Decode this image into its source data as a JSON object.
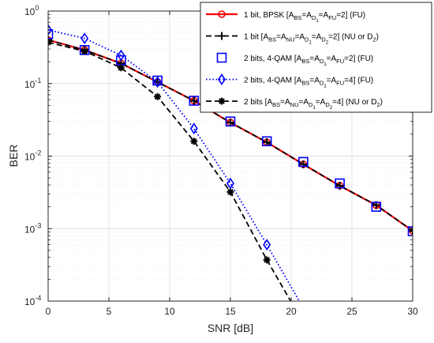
{
  "chart_data": {
    "type": "line",
    "xlabel": "SNR [dB]",
    "ylabel": "BER",
    "xlim": [
      0,
      30
    ],
    "ylim": [
      0.0001,
      1
    ],
    "yscale": "log",
    "grid": true,
    "legend_position": "top-right",
    "x_ticks": [
      0,
      5,
      10,
      15,
      20,
      25,
      30
    ],
    "x_tick_labels": [
      "0",
      "5",
      "10",
      "15",
      "20",
      "25",
      "30"
    ],
    "y_ticks": [
      1,
      0.1,
      0.01,
      0.001,
      0.0001
    ],
    "y_tick_labels": [
      {
        "base": "10",
        "exp": "0"
      },
      {
        "base": "10",
        "exp": "-1"
      },
      {
        "base": "10",
        "exp": "-2"
      },
      {
        "base": "10",
        "exp": "-3"
      },
      {
        "base": "10",
        "exp": "-4"
      }
    ],
    "series": [
      {
        "legend": [
          {
            "t": "1 bit, BPSK [A"
          },
          {
            "t": "BS",
            "sub": true
          },
          {
            "t": "=A"
          },
          {
            "t": "D",
            "sub": true
          },
          {
            "t": "1",
            "subsub": true
          },
          {
            "t": "=A"
          },
          {
            "t": "FU",
            "sub": true
          },
          {
            "t": "=2]  (FU)"
          }
        ],
        "color": "#ff0000",
        "line": "solid",
        "width": 2.2,
        "marker": "circle",
        "x": [
          0,
          3,
          6,
          9,
          12,
          15,
          18,
          21,
          24,
          27,
          30
        ],
        "y": [
          0.4,
          0.29,
          0.19,
          0.105,
          0.058,
          0.029,
          0.0155,
          0.0077,
          0.0039,
          0.0021,
          0.00093
        ]
      },
      {
        "legend": [
          {
            "t": "1 bit [A"
          },
          {
            "t": "BS",
            "sub": true
          },
          {
            "t": "=A"
          },
          {
            "t": "NU",
            "sub": true
          },
          {
            "t": "=A"
          },
          {
            "t": "D",
            "sub": true
          },
          {
            "t": "1",
            "subsub": true
          },
          {
            "t": "=A"
          },
          {
            "t": "D",
            "sub": true
          },
          {
            "t": "2",
            "subsub": true
          },
          {
            "t": "=2]  (NU or D"
          },
          {
            "t": "2",
            "sub": true
          },
          {
            "t": ")"
          }
        ],
        "color": "#000000",
        "line": "dash",
        "width": 1.8,
        "marker": "plus",
        "x": [
          0,
          3,
          6,
          9,
          12,
          15,
          18,
          21,
          24,
          27,
          30
        ],
        "y": [
          0.4,
          0.29,
          0.19,
          0.105,
          0.058,
          0.029,
          0.0155,
          0.0077,
          0.0039,
          0.0021,
          0.00093
        ]
      },
      {
        "legend": [
          {
            "t": "2 bits, 4-QAM [A"
          },
          {
            "t": "BS",
            "sub": true
          },
          {
            "t": "=A"
          },
          {
            "t": "D",
            "sub": true
          },
          {
            "t": "1",
            "subsub": true
          },
          {
            "t": "=A"
          },
          {
            "t": "FU",
            "sub": true
          },
          {
            "t": "=2]  (FU)"
          }
        ],
        "color": "#0000ff",
        "line": "none",
        "width": 1.6,
        "marker": "square",
        "x": [
          0,
          3,
          6,
          9,
          12,
          15,
          18,
          21,
          24,
          27,
          30
        ],
        "y": [
          0.48,
          0.29,
          0.21,
          0.11,
          0.058,
          0.03,
          0.016,
          0.0083,
          0.0042,
          0.002,
          0.00092
        ]
      },
      {
        "legend": [
          {
            "t": "2 bits, 4-QAM [A"
          },
          {
            "t": "BS",
            "sub": true
          },
          {
            "t": "=A"
          },
          {
            "t": "D",
            "sub": true
          },
          {
            "t": "1",
            "subsub": true
          },
          {
            "t": "=A"
          },
          {
            "t": "FU",
            "sub": true
          },
          {
            "t": "=4]  (FU)"
          }
        ],
        "color": "#0000ff",
        "line": "dot",
        "width": 1.8,
        "marker": "diamond",
        "x": [
          0,
          3,
          6,
          9,
          12,
          15,
          18,
          21
        ],
        "y": [
          0.55,
          0.42,
          0.245,
          0.105,
          0.024,
          0.0042,
          0.0006,
          8e-05
        ]
      },
      {
        "legend": [
          {
            "t": "2 bits [A"
          },
          {
            "t": "BS",
            "sub": true
          },
          {
            "t": "=A"
          },
          {
            "t": "NU",
            "sub": true
          },
          {
            "t": "=A"
          },
          {
            "t": "D",
            "sub": true
          },
          {
            "t": "1",
            "subsub": true
          },
          {
            "t": "=A"
          },
          {
            "t": "D",
            "sub": true
          },
          {
            "t": "2",
            "subsub": true
          },
          {
            "t": "=4]  (NU or D"
          },
          {
            "t": "2",
            "sub": true
          },
          {
            "t": ")"
          }
        ],
        "color": "#000000",
        "line": "dash",
        "width": 1.8,
        "marker": "asterisk",
        "x": [
          0,
          3,
          6,
          9,
          12,
          15,
          18,
          21
        ],
        "y": [
          0.37,
          0.28,
          0.165,
          0.066,
          0.016,
          0.0032,
          0.00037,
          5e-05
        ]
      }
    ]
  }
}
